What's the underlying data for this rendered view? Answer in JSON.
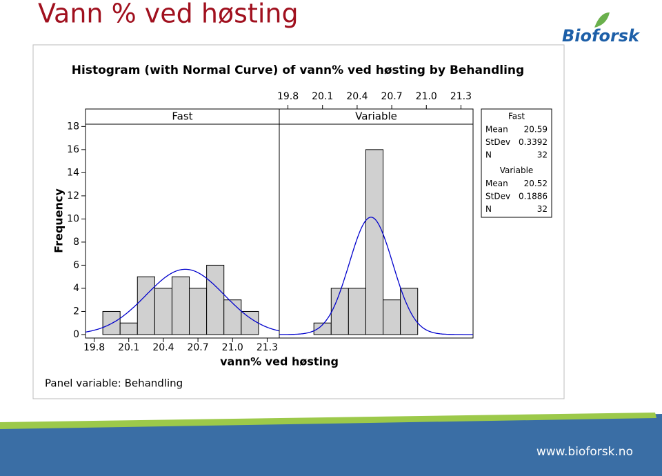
{
  "slide": {
    "title": "Vann % ved høsting",
    "logo": "Bioforsk",
    "footer": "www.bioforsk.no"
  },
  "chart_data": {
    "type": "histogram",
    "title": "Histogram (with Normal Curve) of vann% ved høsting by Behandling",
    "xlabel": "vann% ved høsting",
    "ylabel": "Frequency",
    "footnote": "Panel variable: Behandling",
    "xlim": [
      19.725,
      21.405
    ],
    "ylim": [
      -0.3,
      18.2
    ],
    "xticks": [
      19.8,
      20.1,
      20.4,
      20.7,
      {
        "value": 21,
        "label": "21.0"
      },
      21.3
    ],
    "yticks": [
      0,
      2,
      4,
      6,
      8,
      10,
      12,
      14,
      16,
      18
    ],
    "bar_color": "#d0d0d0",
    "curve_color": "#0000cc",
    "stat_labels": [
      "Mean",
      "StDev",
      "N"
    ],
    "panels": [
      {
        "name": "Fast",
        "bins": [
          19.875,
          20.025,
          20.175,
          20.325,
          20.475,
          20.625,
          20.775,
          20.925,
          21.075,
          21.225
        ],
        "values": [
          2,
          1,
          5,
          4,
          5,
          4,
          6,
          3,
          2
        ],
        "mean": 20.59,
        "stdev": 0.3392,
        "n": 32
      },
      {
        "name": "Variable",
        "bins": [
          20.025,
          20.175,
          20.325,
          20.475,
          20.625,
          20.775,
          20.925
        ],
        "values": [
          1,
          4,
          4,
          16,
          3,
          4
        ],
        "mean": 20.52,
        "stdev": 0.1886,
        "n": 32
      }
    ]
  }
}
